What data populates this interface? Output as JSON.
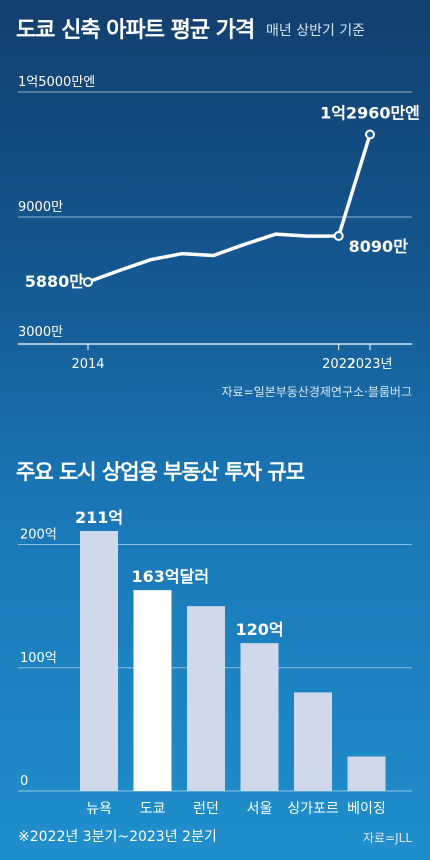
{
  "chart_data": [
    {
      "type": "line",
      "title": "도쿄 신축 아파트 평균 가격",
      "subtitle": "매년 상반기 기준",
      "source": "자료=일본부동산경제연구소·블룸버그",
      "ylim": [
        3000,
        15000
      ],
      "y_ticks": [
        {
          "value": 15000,
          "label": "1억5000만엔"
        },
        {
          "value": 9000,
          "label": "9000만"
        },
        {
          "value": 3000,
          "label": "3000만"
        }
      ],
      "x_ticks": [
        {
          "x": 2014,
          "label": "2014"
        },
        {
          "x": 2022,
          "label": "2022"
        },
        {
          "x": 2023,
          "label": "2023년"
        }
      ],
      "x": [
        2014,
        2015,
        2016,
        2017,
        2018,
        2019,
        2020,
        2021,
        2022,
        2023
      ],
      "values": [
        5880,
        6430,
        6950,
        7240,
        7150,
        7690,
        8180,
        8080,
        8090,
        12960
      ],
      "data_labels": [
        {
          "index": 0,
          "text": "5880만"
        },
        {
          "index": 8,
          "text": "8090만"
        },
        {
          "index": 9,
          "text": "1억2960만엔"
        }
      ],
      "grid": true
    },
    {
      "type": "bar",
      "title": "주요 도시 상업용 부동산 투자 규모",
      "categories": [
        "뉴욕",
        "도쿄",
        "런던",
        "서울",
        "싱가포르",
        "베이징"
      ],
      "values": [
        211,
        163,
        150,
        120,
        80,
        28
      ],
      "highlight_index": 1,
      "ylim": [
        0,
        211
      ],
      "y_ticks": [
        {
          "value": 200,
          "label": "200억"
        },
        {
          "value": 100,
          "label": "100억"
        },
        {
          "value": 0,
          "label": "0"
        }
      ],
      "data_labels": [
        {
          "index": 0,
          "text": "211억"
        },
        {
          "index": 1,
          "text": "163억달러"
        },
        {
          "index": 3,
          "text": "120억"
        }
      ],
      "note": "※2022년 3분기~2023년 2분기",
      "source": "자료=JLL",
      "grid": true
    }
  ],
  "colors": {
    "line": "#ffffff",
    "grid": "#ffffff",
    "bar": "#d0d9ec",
    "bar_highlight": "#ffffff"
  }
}
